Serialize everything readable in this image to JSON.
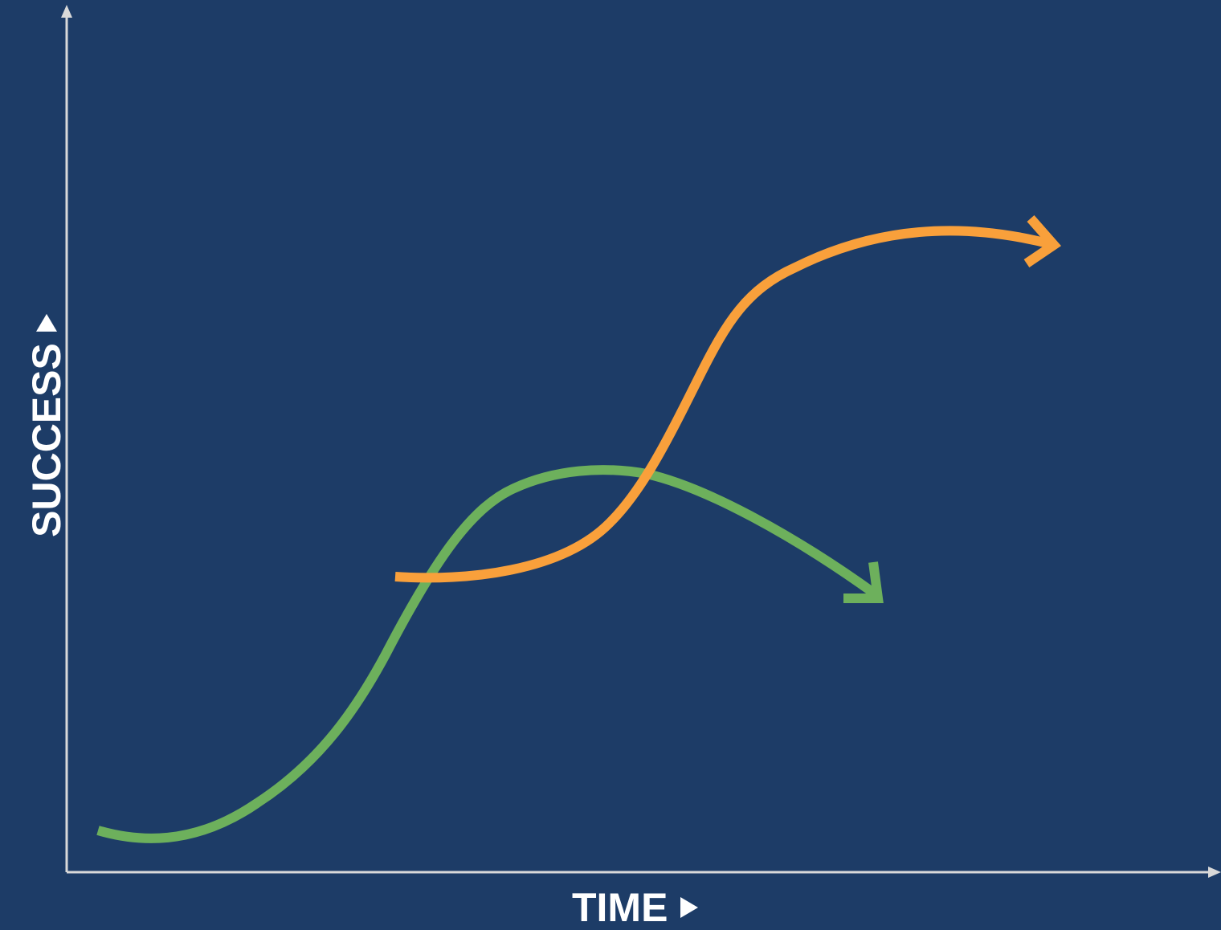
{
  "diagram": {
    "x_axis_label": "TIME",
    "y_axis_label": "SUCCESS",
    "arrow_icon": "play-triangle-icon",
    "colors": {
      "background": "#1d3c67",
      "axis": "#d9d9d9",
      "label": "#ffffff",
      "green_curve": "#6db05c",
      "orange_curve": "#f9a03b"
    },
    "curves": [
      {
        "name": "",
        "color_key": "green_curve",
        "shape": "s-curve-rise-then-decline"
      },
      {
        "name": "",
        "color_key": "orange_curve",
        "shape": "s-curve-rise-then-plateau"
      }
    ]
  }
}
